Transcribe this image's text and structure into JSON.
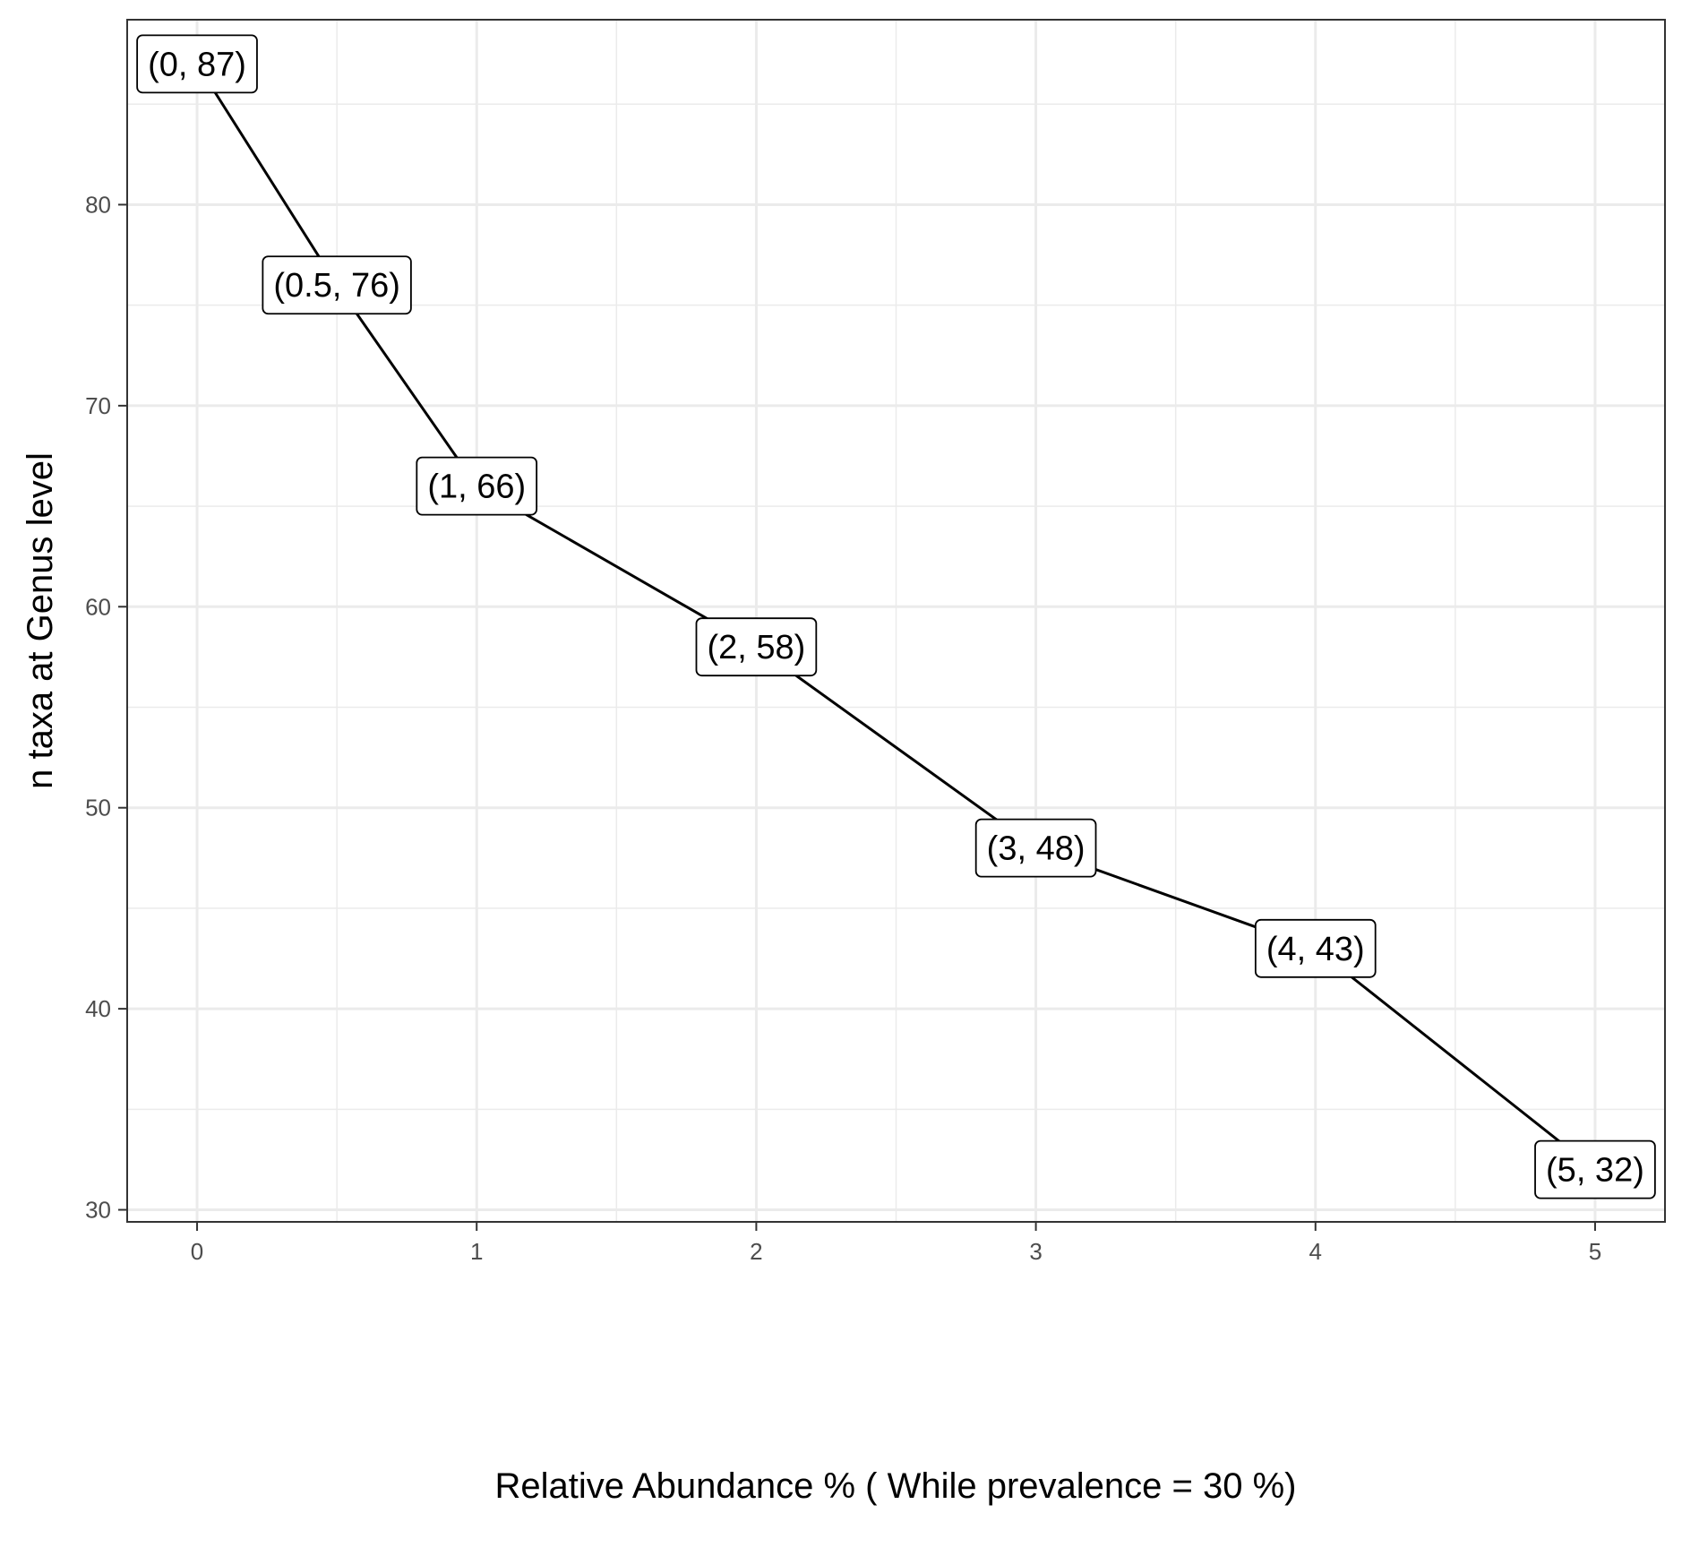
{
  "chart_data": {
    "type": "line",
    "title": "",
    "xlabel": "Relative Abundance % ( While prevalence = 30 %)",
    "ylabel": "n taxa at Genus level",
    "x": [
      0,
      0.5,
      1,
      2,
      3,
      4,
      5
    ],
    "y": [
      87,
      76,
      66,
      58,
      48,
      43,
      32
    ],
    "point_labels": [
      "(0, 87)",
      "(0.5, 76)",
      "(1, 66)",
      "(2, 58)",
      "(3, 48)",
      "(4, 43)",
      "(5, 32)"
    ],
    "xlim": [
      -0.25,
      5.25
    ],
    "ylim": [
      29.4,
      89.2
    ],
    "xticks": [
      0,
      1,
      2,
      3,
      4,
      5
    ],
    "yticks": [
      30,
      40,
      50,
      60,
      70,
      80
    ],
    "grid": true,
    "line_color": "#000000",
    "grid_color": "#ebebeb",
    "legend": "none"
  }
}
